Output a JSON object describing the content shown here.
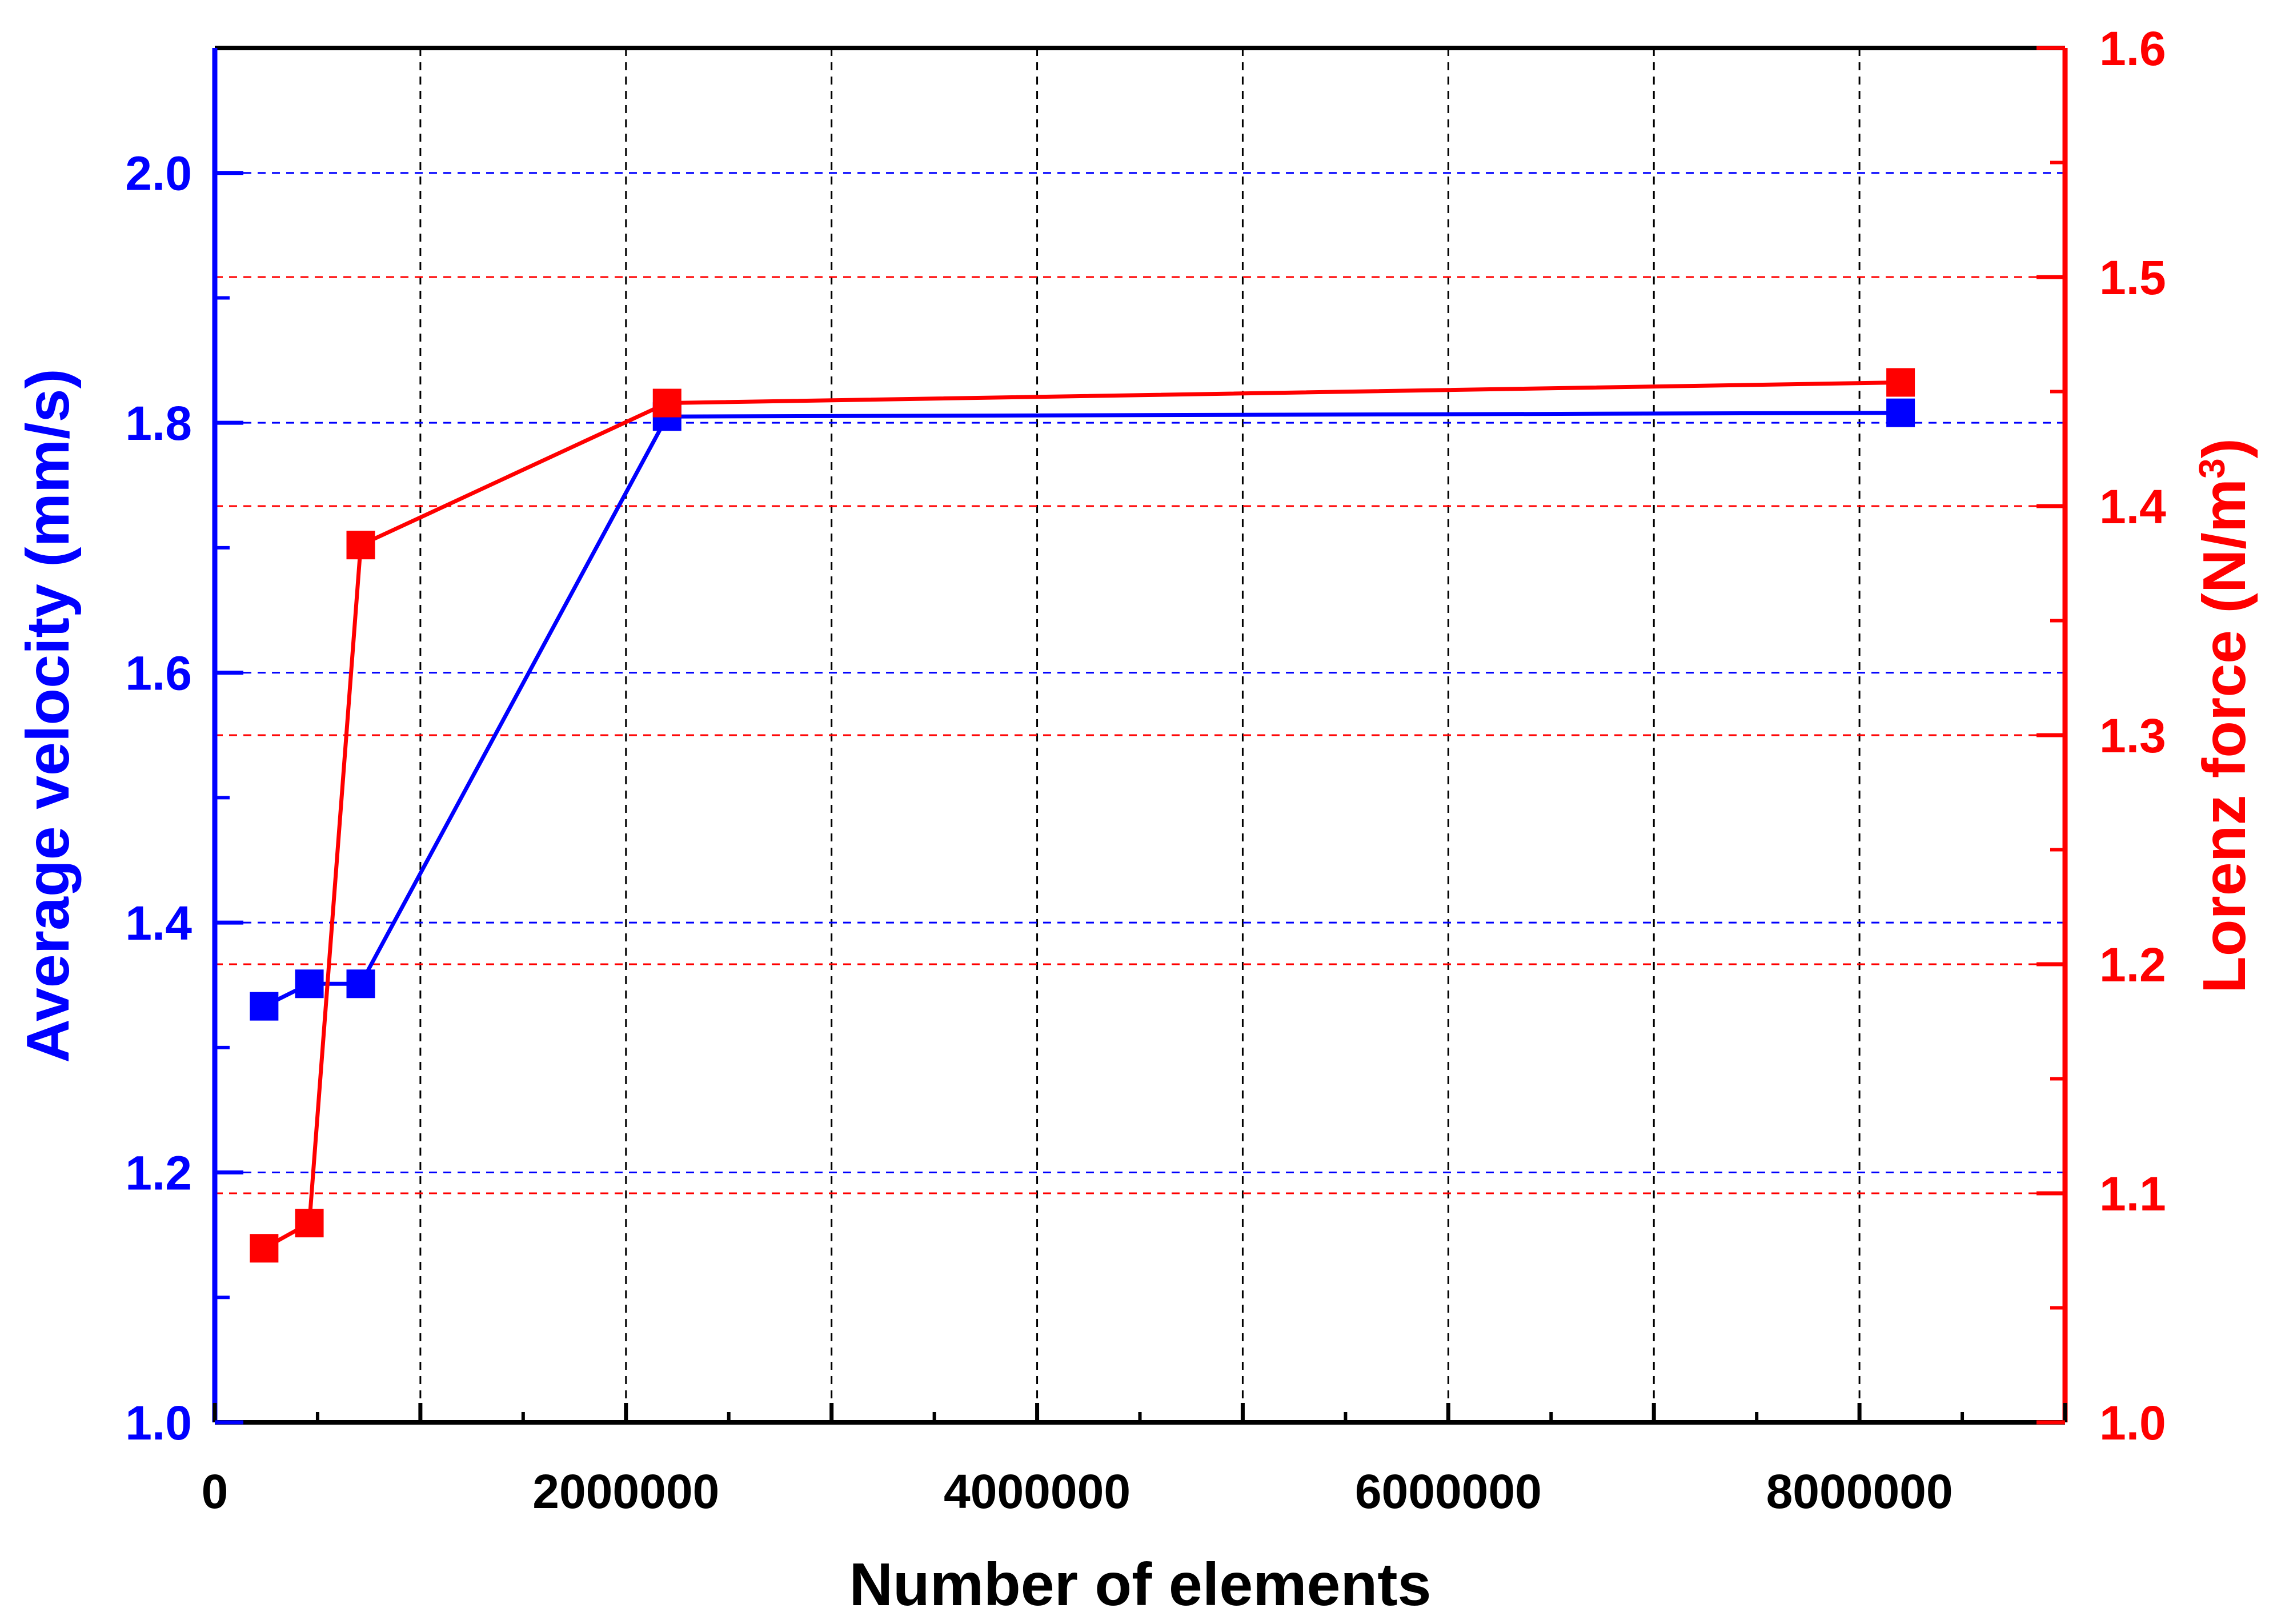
{
  "chart_data": {
    "type": "line",
    "title": "",
    "xlabel": "Number of elements",
    "ylabel_left": "Average velocity (mm/s)",
    "ylabel_right_main": "Lorenz force (N/m",
    "ylabel_right_sup": "3",
    "ylabel_right_close": ")",
    "xlim": [
      0,
      9000000
    ],
    "ylim_left": [
      1.0,
      2.1
    ],
    "ylim_right": [
      1.0,
      1.6
    ],
    "x_ticks": [
      0,
      2000000,
      4000000,
      6000000,
      8000000
    ],
    "x_tick_labels": [
      "0",
      "2000000",
      "4000000",
      "6000000",
      "8000000"
    ],
    "x_minor_ticks": [
      1000000,
      3000000,
      5000000,
      7000000,
      9000000
    ],
    "y_left_ticks": [
      1.0,
      1.2,
      1.4,
      1.6,
      1.8,
      2.0
    ],
    "y_left_tick_labels": [
      "1.0",
      "1.2",
      "1.4",
      "1.6",
      "1.8",
      "2.0"
    ],
    "y_right_ticks": [
      1.0,
      1.1,
      1.2,
      1.3,
      1.4,
      1.5,
      1.6
    ],
    "y_right_tick_labels": [
      "1.0",
      "1.1",
      "1.2",
      "1.3",
      "1.4",
      "1.5",
      "1.6"
    ],
    "grid": true,
    "series": [
      {
        "axis": "left",
        "color": "#0000ff",
        "x": [
          240000,
          460000,
          710000,
          2200000,
          8200000
        ],
        "values": [
          1.333,
          1.351,
          1.351,
          1.805,
          1.808
        ]
      },
      {
        "axis": "right",
        "color": "#ff0000",
        "x": [
          240000,
          460000,
          710000,
          2200000,
          8200000
        ],
        "values": [
          1.076,
          1.087,
          1.383,
          1.445,
          1.454
        ]
      }
    ],
    "colors": {
      "left_axis": "#0000ff",
      "right_axis": "#ff0000",
      "x_grid": "#000000",
      "frame": "#000000"
    }
  }
}
